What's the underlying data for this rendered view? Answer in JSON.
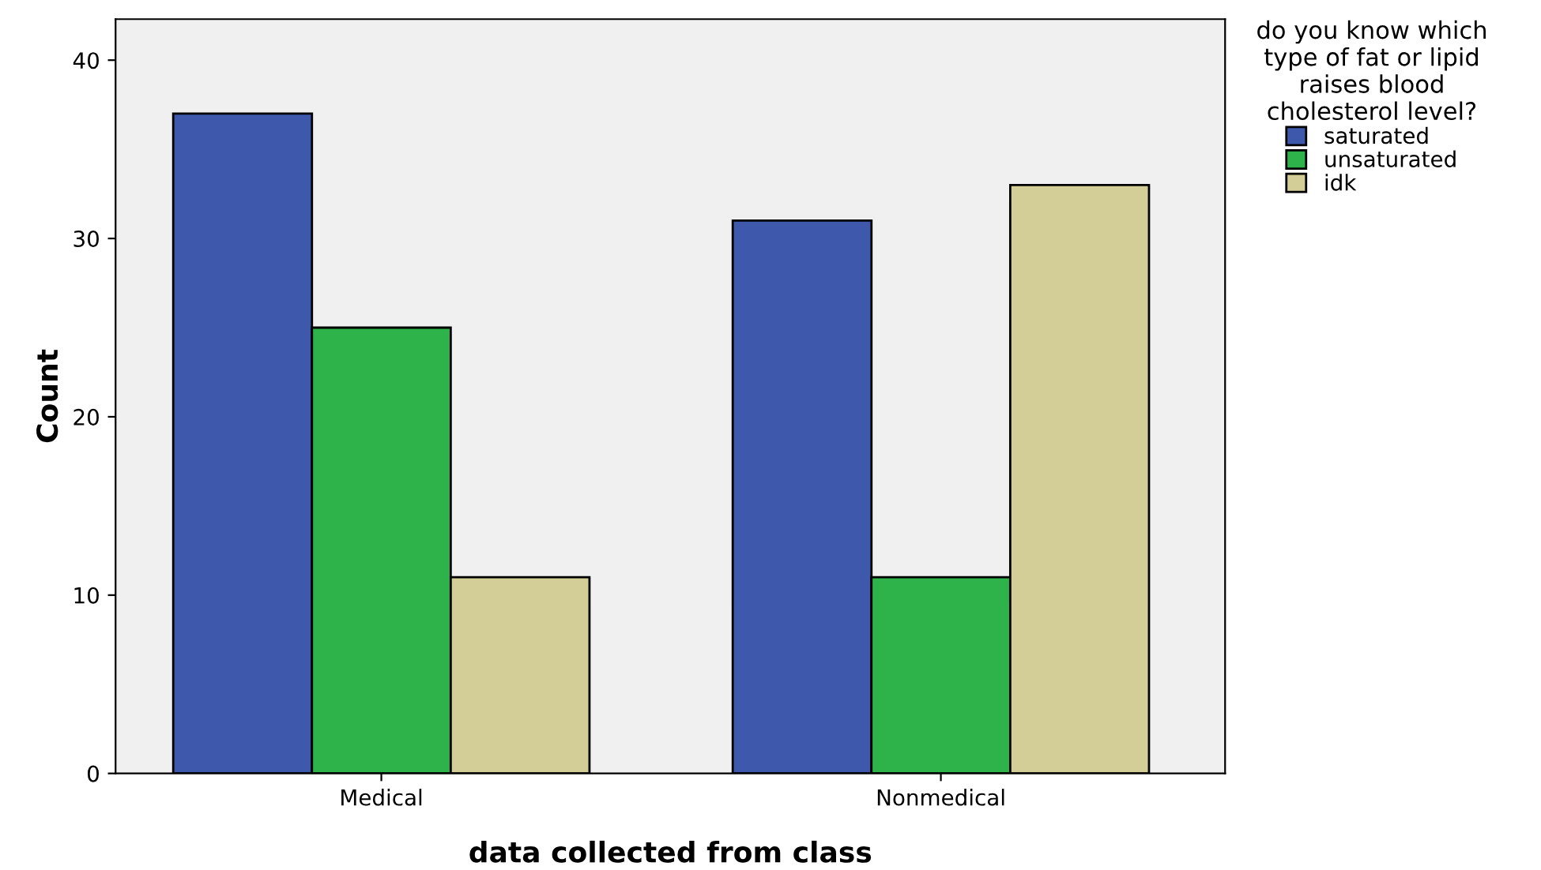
{
  "chart_data": {
    "type": "bar",
    "xlabel": "data collected from class",
    "ylabel": "Count",
    "legend_title": "do you know which\ntype of fat or lipid\nraises blood\ncholesterol level?",
    "categories": [
      "Medical",
      "Nonmedical"
    ],
    "series": [
      {
        "name": "saturated",
        "color": "#3e58ac",
        "values": [
          37,
          31
        ]
      },
      {
        "name": "unsaturated",
        "color": "#2db34a",
        "values": [
          25,
          11
        ]
      },
      {
        "name": "idk",
        "color": "#d3ce97",
        "values": [
          11,
          33
        ]
      }
    ],
    "ylim": [
      0,
      42.3
    ],
    "yticks": [
      0,
      10,
      20,
      30,
      40
    ],
    "grid": false,
    "legend": "right"
  }
}
